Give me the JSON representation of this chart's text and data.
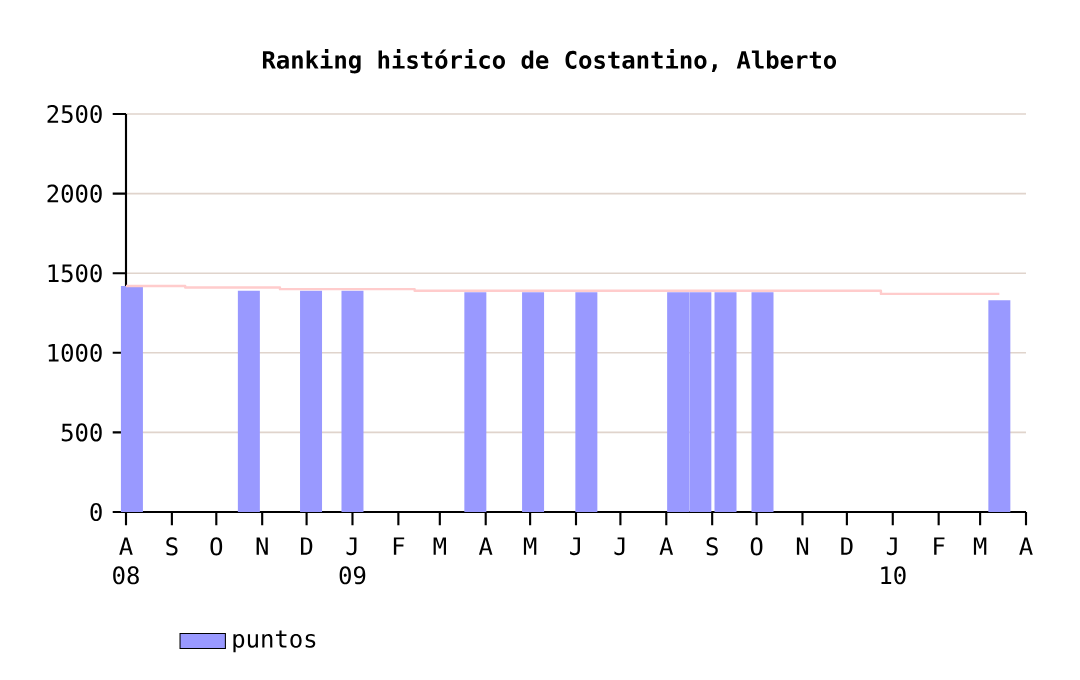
{
  "chart_data": {
    "type": "bar",
    "title": "Ranking histórico de Costantino, Alberto",
    "xlim": [
      "2008-08-01",
      "2010-04-01"
    ],
    "xticks": [
      {
        "value": "2008-08-01",
        "label": "A 08"
      },
      {
        "value": "2008-09-01",
        "label": "S"
      },
      {
        "value": "2008-10-01",
        "label": "O"
      },
      {
        "value": "2008-11-01",
        "label": "N"
      },
      {
        "value": "2008-12-01",
        "label": "D"
      },
      {
        "value": "2009-01-01",
        "label": "J 09"
      },
      {
        "value": "2009-02-01",
        "label": "F"
      },
      {
        "value": "2009-03-01",
        "label": "M"
      },
      {
        "value": "2009-04-01",
        "label": "A"
      },
      {
        "value": "2009-05-01",
        "label": "M"
      },
      {
        "value": "2009-06-01",
        "label": "J"
      },
      {
        "value": "2009-07-01",
        "label": "J"
      },
      {
        "value": "2009-08-01",
        "label": "A"
      },
      {
        "value": "2009-09-01",
        "label": "S"
      },
      {
        "value": "2009-10-01",
        "label": "O"
      },
      {
        "value": "2009-11-01",
        "label": "N"
      },
      {
        "value": "2009-12-01",
        "label": "D"
      },
      {
        "value": "2010-01-01",
        "label": "J 10"
      },
      {
        "value": "2010-02-01",
        "label": "F"
      },
      {
        "value": "2010-03-01",
        "label": "M"
      },
      {
        "value": "2010-04-01",
        "label": "A"
      }
    ],
    "ylim": [
      0,
      2500
    ],
    "yticks": [
      0,
      500,
      1000,
      1500,
      2000,
      2500
    ],
    "grid": "y",
    "legend": "bottom left",
    "series": [
      {
        "name": "puntos",
        "color": "#9999ff",
        "x": [
          "2008-08-05",
          "2008-10-23",
          "2008-12-04",
          "2009-01-01",
          "2009-03-25",
          "2009-05-03",
          "2009-06-08",
          "2009-08-09",
          "2009-08-24",
          "2009-09-10",
          "2009-10-05",
          "2010-03-14"
        ],
        "values": [
          1420,
          1390,
          1390,
          1390,
          1380,
          1380,
          1380,
          1380,
          1380,
          1380,
          1380,
          1330
        ]
      },
      {
        "type": "step",
        "color": "#ffcccc",
        "x": [
          "2008-08-01",
          "2008-09-10",
          "2008-11-13",
          "2009-02-12",
          "2009-12-24",
          "2010-03-14"
        ],
        "values": [
          1420,
          1410,
          1400,
          1390,
          1370,
          1370
        ]
      }
    ]
  }
}
